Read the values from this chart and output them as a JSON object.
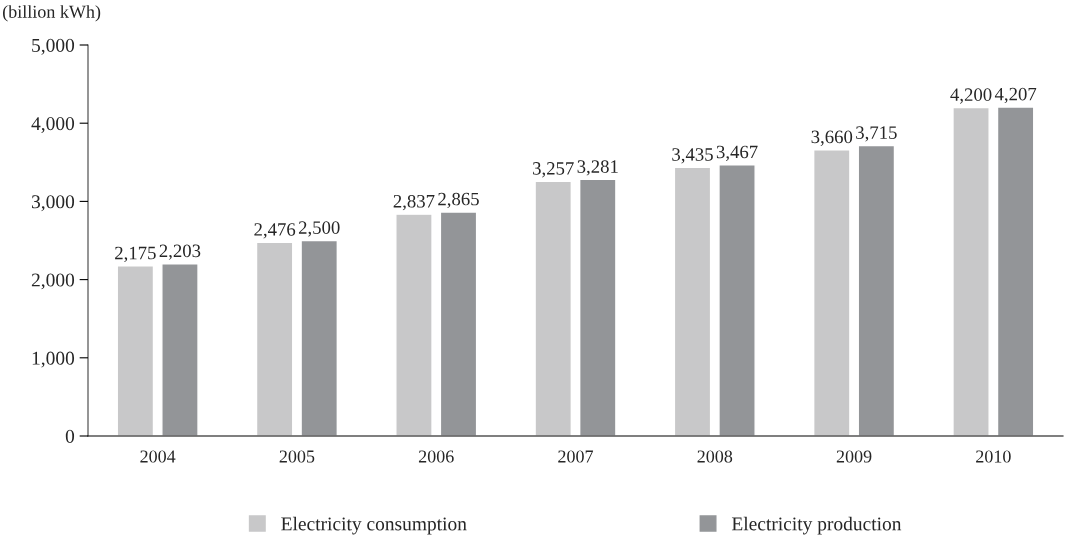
{
  "chart_data": {
    "type": "bar",
    "ylabel": "(billion kWh)",
    "categories": [
      "2004",
      "2005",
      "2006",
      "2007",
      "2008",
      "2009",
      "2010"
    ],
    "series": [
      {
        "name": "Electricity consumption",
        "color": "#c8c8c9",
        "values": [
          2175,
          2476,
          2837,
          3257,
          3435,
          3660,
          4200
        ],
        "value_labels": [
          "2,175",
          "2,476",
          "2,837",
          "3,257",
          "3,435",
          "3,660",
          "4,200"
        ]
      },
      {
        "name": "Electricity production",
        "color": "#939598",
        "values": [
          2203,
          2500,
          2865,
          3281,
          3467,
          3715,
          4207
        ],
        "value_labels": [
          "2,203",
          "2,500",
          "2,865",
          "3,281",
          "3,467",
          "3,715",
          "4,207"
        ]
      }
    ],
    "ylim": [
      0,
      5000
    ],
    "yticks": [
      0,
      {
        "value": 1000,
        "label": "1,000"
      },
      {
        "value": 2000,
        "label": "2,000"
      },
      {
        "value": 3000,
        "label": "3,000"
      },
      {
        "value": 4000,
        "label": "4,000"
      },
      {
        "value": 5000,
        "label": "5,000"
      }
    ],
    "grid": false,
    "legend": "bottom"
  }
}
